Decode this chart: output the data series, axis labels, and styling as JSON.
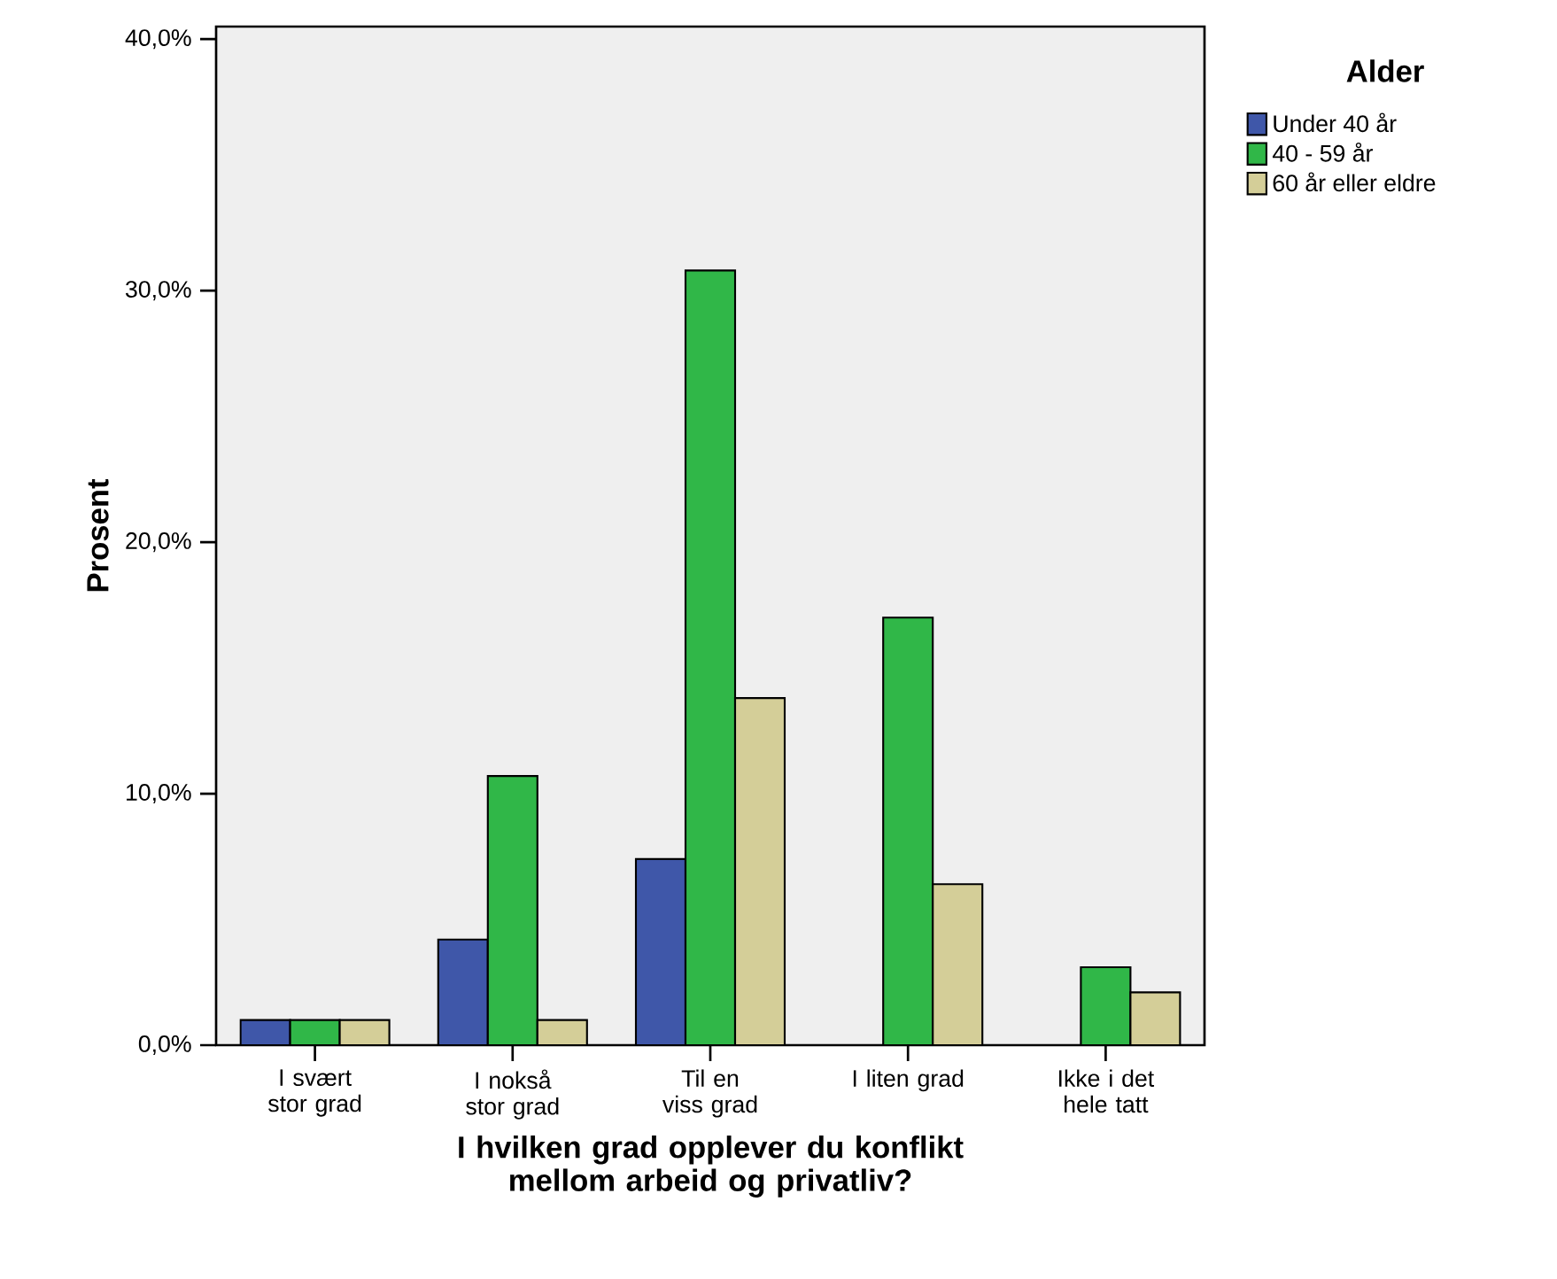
{
  "chart_data": {
    "type": "bar",
    "xlabel": "I hvilken grad opplever du konflikt mellom arbeid og privatliv?",
    "ylabel": "Prosent",
    "legend_title": "Alder",
    "categories": [
      "I svært stor grad",
      "I nokså stor grad",
      "Til en viss grad",
      "I liten grad",
      "Ikke i det hele tatt"
    ],
    "series": [
      {
        "name": "Under 40 år",
        "color": "#3f57a9",
        "values": [
          1.0,
          4.2,
          7.4,
          0,
          0
        ]
      },
      {
        "name": "40 - 59 år",
        "color": "#30b748",
        "values": [
          1.0,
          10.7,
          30.8,
          17.0,
          3.1
        ]
      },
      {
        "name": "60 år eller eldre",
        "color": "#d4ce98",
        "values": [
          1.0,
          1.0,
          13.8,
          6.4,
          2.1
        ]
      }
    ],
    "ylim": [
      0,
      40.5
    ],
    "yticks": [
      {
        "value": 0,
        "label": "0,0%"
      },
      {
        "value": 10,
        "label": "10,0%"
      },
      {
        "value": 20,
        "label": "20,0%"
      },
      {
        "value": 30,
        "label": "30,0%"
      },
      {
        "value": 40,
        "label": "40,0%"
      }
    ],
    "grid": false,
    "legend": "top right"
  }
}
